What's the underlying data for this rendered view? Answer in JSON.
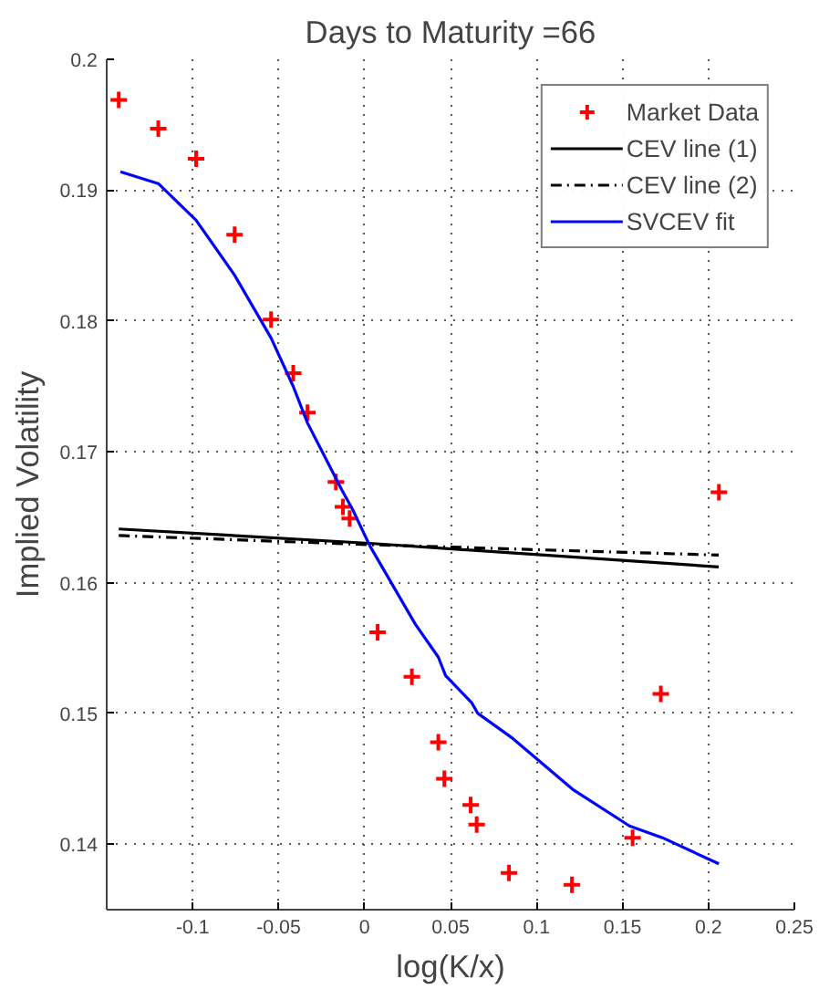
{
  "chart_data": {
    "type": "scatter",
    "title": "Days to Maturity =66",
    "xlabel": "log(K/x)",
    "ylabel": "Implied Volatility",
    "xlim": [
      -0.15,
      0.25
    ],
    "ylim": [
      0.135,
      0.2
    ],
    "xticks": [
      -0.1,
      -0.05,
      0,
      0.05,
      0.1,
      0.15,
      0.2,
      0.25
    ],
    "yticks": [
      0.14,
      0.15,
      0.16,
      0.17,
      0.18,
      0.19,
      0.2
    ],
    "grid": true,
    "legend": "top right",
    "series": [
      {
        "name": "Market Data",
        "marker": "cross",
        "color": "#ff0000",
        "x": [
          -0.143,
          -0.12,
          -0.098,
          -0.0756,
          -0.0544,
          -0.0415,
          -0.0332,
          -0.0167,
          -0.0126,
          -0.0087,
          0.0076,
          0.0275,
          0.0429,
          0.0464,
          0.0617,
          0.0652,
          0.084,
          0.1206,
          0.1559,
          0.1723,
          0.2061
        ],
        "values": [
          0.1969,
          0.1947,
          0.1924,
          0.1866,
          0.1801,
          0.176,
          0.173,
          0.1677,
          0.1658,
          0.1649,
          0.1562,
          0.1528,
          0.1478,
          0.145,
          0.143,
          0.1415,
          0.1378,
          0.1369,
          0.1405,
          0.1515,
          0.1669
        ]
      },
      {
        "name": "CEV line (1)",
        "type": "line",
        "marker": "none",
        "line_style": "solid",
        "color": "#000000",
        "x": [
          -0.143,
          0.003,
          0.206
        ],
        "values": [
          0.1641,
          0.163,
          0.1612
        ]
      },
      {
        "name": "CEV line (2)",
        "type": "line",
        "marker": "none",
        "line_style": "dashdot",
        "color": "#000000",
        "x": [
          -0.143,
          0.003,
          0.206
        ],
        "values": [
          0.1636,
          0.1629,
          0.1621
        ]
      },
      {
        "name": "SVCEV fit",
        "type": "line",
        "marker": "none",
        "line_style": "solid",
        "color": "#0000ff",
        "x": [
          -0.142,
          -0.12,
          -0.098,
          -0.0756,
          -0.0544,
          -0.0415,
          -0.0332,
          -0.0133,
          -0.007,
          0.0031,
          0.0296,
          0.0429,
          0.0471,
          0.0624,
          0.0659,
          0.0861,
          0.121,
          0.1541,
          0.1733,
          0.2061
        ],
        "values": [
          0.1914,
          0.1905,
          0.1877,
          0.1835,
          0.1787,
          0.175,
          0.1722,
          0.1671,
          0.1656,
          0.1628,
          0.1568,
          0.1543,
          0.1529,
          0.1508,
          0.15,
          0.1481,
          0.1442,
          0.1414,
          0.1405,
          0.1385
        ]
      }
    ]
  }
}
